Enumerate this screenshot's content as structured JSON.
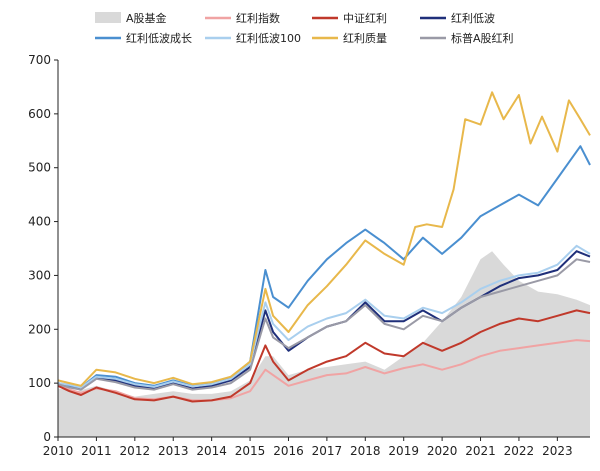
{
  "chart_data": {
    "type": "line",
    "title": "",
    "xlabel": "",
    "ylabel": "",
    "ylim": [
      0,
      700
    ],
    "yticks": [
      0,
      100,
      200,
      300,
      400,
      500,
      600,
      700
    ],
    "xlim": [
      2010.0,
      2023.85
    ],
    "xticks": [
      "2010",
      "2011",
      "2012",
      "2013",
      "2014",
      "2015",
      "2016",
      "2017",
      "2018",
      "2019",
      "2020",
      "2021",
      "2022",
      "2023"
    ],
    "grid": false,
    "legend_position": "top",
    "legend": [
      {
        "name": "A股基金",
        "color": "#d9d9d9",
        "kind": "area"
      },
      {
        "name": "红利指数",
        "color": "#f0a3a3",
        "kind": "line"
      },
      {
        "name": "中证红利",
        "color": "#c0392b",
        "kind": "line"
      },
      {
        "name": "红利低波",
        "color": "#1f2f7a",
        "kind": "line"
      },
      {
        "name": "红利低波成长",
        "color": "#4a8fd0",
        "kind": "line"
      },
      {
        "name": "红利低波100",
        "color": "#a9cfee",
        "kind": "line"
      },
      {
        "name": "红利质量",
        "color": "#e8b84b",
        "kind": "line"
      },
      {
        "name": "标普A股红利",
        "color": "#9a9aa6",
        "kind": "line"
      }
    ],
    "series": [
      {
        "name": "A股基金",
        "type": "area",
        "color": "#d9d9d9",
        "x": [
          2010.0,
          2010.5,
          2011.0,
          2011.5,
          2012.0,
          2012.5,
          2013.0,
          2013.5,
          2014.0,
          2014.5,
          2015.0,
          2015.4,
          2015.6,
          2016.0,
          2016.5,
          2017.0,
          2017.5,
          2018.0,
          2018.5,
          2019.0,
          2019.5,
          2020.0,
          2020.5,
          2021.0,
          2021.3,
          2021.6,
          2022.0,
          2022.5,
          2023.0,
          2023.5,
          2023.85
        ],
        "values": [
          90,
          85,
          95,
          85,
          75,
          80,
          85,
          80,
          80,
          85,
          105,
          150,
          150,
          115,
          125,
          130,
          135,
          140,
          125,
          150,
          175,
          215,
          260,
          330,
          345,
          320,
          290,
          270,
          265,
          255,
          245
        ]
      },
      {
        "name": "红利指数",
        "type": "line",
        "color": "#f0a3a3",
        "x": [
          2010.0,
          2010.3,
          2010.6,
          2011.0,
          2011.5,
          2012.0,
          2012.5,
          2013.0,
          2013.5,
          2014.0,
          2014.5,
          2015.0,
          2015.4,
          2015.6,
          2016.0,
          2016.5,
          2017.0,
          2017.5,
          2018.0,
          2018.5,
          2019.0,
          2019.5,
          2020.0,
          2020.5,
          2021.0,
          2021.5,
          2022.0,
          2022.5,
          2023.0,
          2023.5,
          2023.85
        ],
        "values": [
          95,
          88,
          82,
          90,
          85,
          72,
          70,
          75,
          68,
          68,
          72,
          85,
          125,
          115,
          95,
          105,
          115,
          118,
          130,
          118,
          128,
          135,
          125,
          135,
          150,
          160,
          165,
          170,
          175,
          180,
          178
        ]
      },
      {
        "name": "中证红利",
        "type": "line",
        "color": "#c0392b",
        "x": [
          2010.0,
          2010.3,
          2010.6,
          2011.0,
          2011.5,
          2012.0,
          2012.5,
          2013.0,
          2013.5,
          2014.0,
          2014.5,
          2015.0,
          2015.4,
          2015.6,
          2016.0,
          2016.5,
          2017.0,
          2017.5,
          2018.0,
          2018.5,
          2019.0,
          2019.5,
          2020.0,
          2020.5,
          2021.0,
          2021.5,
          2022.0,
          2022.5,
          2023.0,
          2023.5,
          2023.85
        ],
        "values": [
          95,
          85,
          78,
          92,
          82,
          70,
          68,
          75,
          66,
          68,
          75,
          100,
          170,
          140,
          105,
          125,
          140,
          150,
          175,
          155,
          150,
          175,
          160,
          175,
          195,
          210,
          220,
          215,
          225,
          235,
          230
        ]
      },
      {
        "name": "红利低波",
        "type": "line",
        "color": "#1f2f7a",
        "x": [
          2010.0,
          2010.3,
          2010.6,
          2011.0,
          2011.5,
          2012.0,
          2012.5,
          2013.0,
          2013.5,
          2014.0,
          2014.5,
          2015.0,
          2015.4,
          2015.6,
          2016.0,
          2016.5,
          2017.0,
          2017.5,
          2018.0,
          2018.5,
          2019.0,
          2019.5,
          2020.0,
          2020.5,
          2021.0,
          2021.5,
          2022.0,
          2022.5,
          2023.0,
          2023.5,
          2023.85
        ],
        "values": [
          100,
          95,
          90,
          110,
          105,
          95,
          90,
          100,
          90,
          95,
          105,
          130,
          235,
          195,
          160,
          185,
          205,
          215,
          250,
          215,
          215,
          235,
          215,
          240,
          260,
          280,
          295,
          300,
          310,
          345,
          335
        ]
      },
      {
        "name": "红利低波成长",
        "type": "line",
        "color": "#4a8fd0",
        "x": [
          2010.0,
          2010.3,
          2010.6,
          2011.0,
          2011.5,
          2012.0,
          2012.5,
          2013.0,
          2013.5,
          2014.0,
          2014.5,
          2015.0,
          2015.4,
          2015.6,
          2016.0,
          2016.5,
          2017.0,
          2017.5,
          2018.0,
          2018.5,
          2019.0,
          2019.5,
          2020.0,
          2020.5,
          2021.0,
          2021.5,
          2022.0,
          2022.5,
          2023.0,
          2023.3,
          2023.6,
          2023.85
        ],
        "values": [
          100,
          95,
          92,
          115,
          112,
          100,
          95,
          105,
          95,
          100,
          110,
          140,
          310,
          260,
          240,
          290,
          330,
          360,
          385,
          360,
          330,
          370,
          340,
          370,
          410,
          430,
          450,
          430,
          480,
          510,
          540,
          505
        ]
      },
      {
        "name": "红利低波100",
        "type": "line",
        "color": "#a9cfee",
        "x": [
          2010.0,
          2010.3,
          2010.6,
          2011.0,
          2011.5,
          2012.0,
          2012.5,
          2013.0,
          2013.5,
          2014.0,
          2014.5,
          2015.0,
          2015.4,
          2015.6,
          2016.0,
          2016.5,
          2017.0,
          2017.5,
          2018.0,
          2018.5,
          2019.0,
          2019.5,
          2020.0,
          2020.5,
          2021.0,
          2021.5,
          2022.0,
          2022.5,
          2023.0,
          2023.5,
          2023.85
        ],
        "values": [
          100,
          97,
          92,
          112,
          108,
          98,
          93,
          103,
          94,
          98,
          108,
          135,
          250,
          210,
          180,
          205,
          220,
          230,
          255,
          225,
          220,
          240,
          230,
          250,
          275,
          290,
          300,
          305,
          320,
          355,
          340
        ]
      },
      {
        "name": "红利质量",
        "type": "line",
        "color": "#e8b84b",
        "x": [
          2010.0,
          2010.3,
          2010.6,
          2011.0,
          2011.5,
          2012.0,
          2012.5,
          2013.0,
          2013.5,
          2014.0,
          2014.5,
          2015.0,
          2015.4,
          2015.6,
          2016.0,
          2016.5,
          2017.0,
          2017.5,
          2018.0,
          2018.5,
          2019.0,
          2019.3,
          2019.6,
          2020.0,
          2020.3,
          2020.6,
          2021.0,
          2021.3,
          2021.6,
          2022.0,
          2022.3,
          2022.6,
          2023.0,
          2023.3,
          2023.6,
          2023.85
        ],
        "values": [
          105,
          100,
          95,
          125,
          120,
          108,
          100,
          110,
          98,
          102,
          112,
          140,
          275,
          225,
          195,
          245,
          280,
          320,
          365,
          340,
          320,
          390,
          395,
          390,
          460,
          590,
          580,
          640,
          590,
          635,
          545,
          595,
          530,
          625,
          590,
          560
        ]
      },
      {
        "name": "标普A股红利",
        "type": "line",
        "color": "#9a9aa6",
        "x": [
          2010.0,
          2010.3,
          2010.6,
          2011.0,
          2011.5,
          2012.0,
          2012.5,
          2013.0,
          2013.5,
          2014.0,
          2014.5,
          2015.0,
          2015.4,
          2015.6,
          2016.0,
          2016.5,
          2017.0,
          2017.5,
          2018.0,
          2018.5,
          2019.0,
          2019.5,
          2020.0,
          2020.5,
          2021.0,
          2021.5,
          2022.0,
          2022.5,
          2023.0,
          2023.5,
          2023.85
        ],
        "values": [
          98,
          92,
          88,
          108,
          102,
          92,
          88,
          98,
          88,
          92,
          100,
          125,
          220,
          185,
          165,
          185,
          205,
          215,
          245,
          210,
          200,
          225,
          215,
          240,
          260,
          270,
          280,
          290,
          300,
          330,
          325
        ]
      }
    ]
  }
}
